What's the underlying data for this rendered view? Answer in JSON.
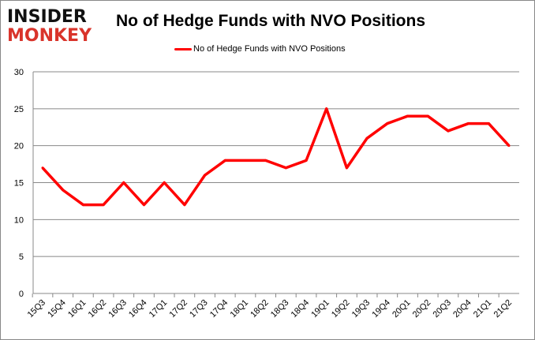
{
  "logo": {
    "line1": "INSIDER",
    "line2": "MONKEY"
  },
  "chart_data": {
    "type": "line",
    "title": "No of Hedge Funds with NVO Positions",
    "categories": [
      "15Q3",
      "15Q4",
      "16Q1",
      "16Q2",
      "16Q3",
      "16Q4",
      "17Q1",
      "17Q2",
      "17Q3",
      "17Q4",
      "18Q1",
      "18Q2",
      "18Q3",
      "18Q4",
      "19Q1",
      "19Q2",
      "19Q3",
      "19Q4",
      "20Q1",
      "20Q2",
      "20Q3",
      "20Q4",
      "21Q1",
      "21Q2"
    ],
    "series": [
      {
        "name": "No of Hedge Funds with NVO Positions",
        "color": "#ff0000",
        "values": [
          17,
          14,
          12,
          12,
          15,
          12,
          15,
          12,
          16,
          18,
          18,
          18,
          17,
          18,
          25,
          17,
          21,
          23,
          24,
          24,
          22,
          23,
          23,
          20
        ]
      }
    ],
    "yticks": [
      0,
      5,
      10,
      15,
      20,
      25,
      30
    ],
    "ylim": [
      0,
      30
    ],
    "xlabel": "",
    "ylabel": "",
    "grid": true,
    "legend": "top-center"
  }
}
